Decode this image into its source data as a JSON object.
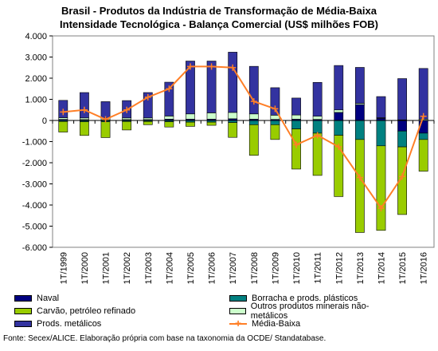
{
  "title_line1": "Brasil - Produtos da Indústria de Transformação de Média-Baixa",
  "title_line2": "Intensidade Tecnológica - Balança Comercial (US$ milhões FOB)",
  "source": "Fonte: Secex/ALICE. Elaboração própria com base na taxonomia da OCDE/ Standatabase.",
  "chart_data": {
    "type": "bar",
    "stacked": true,
    "categories": [
      "1T/1999",
      "1T/2000",
      "1T/2001",
      "1T/2002",
      "1T/2003",
      "1T/2004",
      "1T/2005",
      "1T/2006",
      "1T/2007",
      "1T/2008",
      "1T/2009",
      "1T/2010",
      "1T/2011",
      "1T/2012",
      "1T/2013",
      "1T/2014",
      "1T/2015",
      "1T/2016"
    ],
    "ylim": [
      -6000,
      4000
    ],
    "yticks": [
      4000,
      3000,
      2000,
      1000,
      0,
      -1000,
      -2000,
      -3000,
      -4000,
      -5000,
      -6000
    ],
    "ytick_labels": [
      "4.000",
      "3.000",
      "2.000",
      "1.000",
      "0",
      "-1.000",
      "-2.000",
      "-3.000",
      "-4.000",
      "-5.000",
      "-6.000"
    ],
    "grid": false,
    "legend_position": "bottom",
    "series": [
      {
        "name": "Naval",
        "color": "#000080",
        "values": [
          50,
          40,
          30,
          40,
          40,
          60,
          60,
          60,
          80,
          60,
          50,
          60,
          50,
          380,
          750,
          100,
          -500,
          -600
        ]
      },
      {
        "name": "Carvão, petróleo refinado",
        "color": "#99cc00",
        "values": [
          -500,
          -650,
          -750,
          -400,
          -150,
          -250,
          -200,
          -150,
          -700,
          -1450,
          -700,
          -1900,
          -2000,
          -2900,
          -4400,
          -4000,
          -3200,
          -1500
        ]
      },
      {
        "name": "Prods. metálicos",
        "color": "#3333a0",
        "values": [
          820,
          1200,
          780,
          820,
          1200,
          1600,
          2500,
          2450,
          2850,
          2250,
          1300,
          800,
          1600,
          2100,
          1700,
          1000,
          1950,
          2400
        ]
      },
      {
        "name": "Borracha e prods. plásticos",
        "color": "#008080",
        "values": [
          -50,
          -60,
          -60,
          -50,
          -50,
          -60,
          -80,
          -80,
          -100,
          -200,
          -200,
          -400,
          -600,
          -700,
          -900,
          -1200,
          -750,
          -300
        ]
      },
      {
        "name": "Outros produtos minerais não-metálicos",
        "color": "#ccffcc",
        "values": [
          80,
          80,
          80,
          80,
          80,
          150,
          250,
          300,
          300,
          250,
          200,
          200,
          150,
          120,
          60,
          30,
          30,
          60
        ]
      },
      {
        "name": "Média-Baixa",
        "type": "line",
        "color": "#ff7f27",
        "values": [
          400,
          500,
          50,
          500,
          1100,
          1500,
          2550,
          2550,
          2500,
          900,
          550,
          -1150,
          -700,
          -1250,
          -2700,
          -4150,
          -2650,
          200
        ]
      }
    ]
  }
}
